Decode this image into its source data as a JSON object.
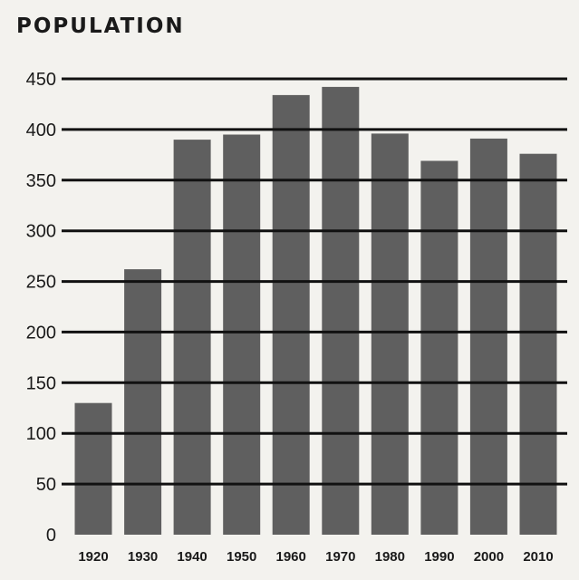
{
  "chart_data": {
    "type": "bar",
    "title": "POPULATION",
    "xlabel": "",
    "ylabel": "",
    "categories": [
      "1920",
      "1930",
      "1940",
      "1950",
      "1960",
      "1970",
      "1980",
      "1990",
      "2000",
      "2010"
    ],
    "values": [
      130,
      262,
      390,
      395,
      434,
      442,
      396,
      369,
      391,
      376
    ],
    "ylim": [
      0,
      450
    ],
    "yticks": [
      0,
      50,
      100,
      150,
      200,
      250,
      300,
      350,
      400,
      450
    ],
    "grid": true,
    "legend": "none",
    "colors": {
      "bar": "#5f5f5f",
      "gridline": "#111111",
      "background": "#f3f2ee"
    }
  }
}
